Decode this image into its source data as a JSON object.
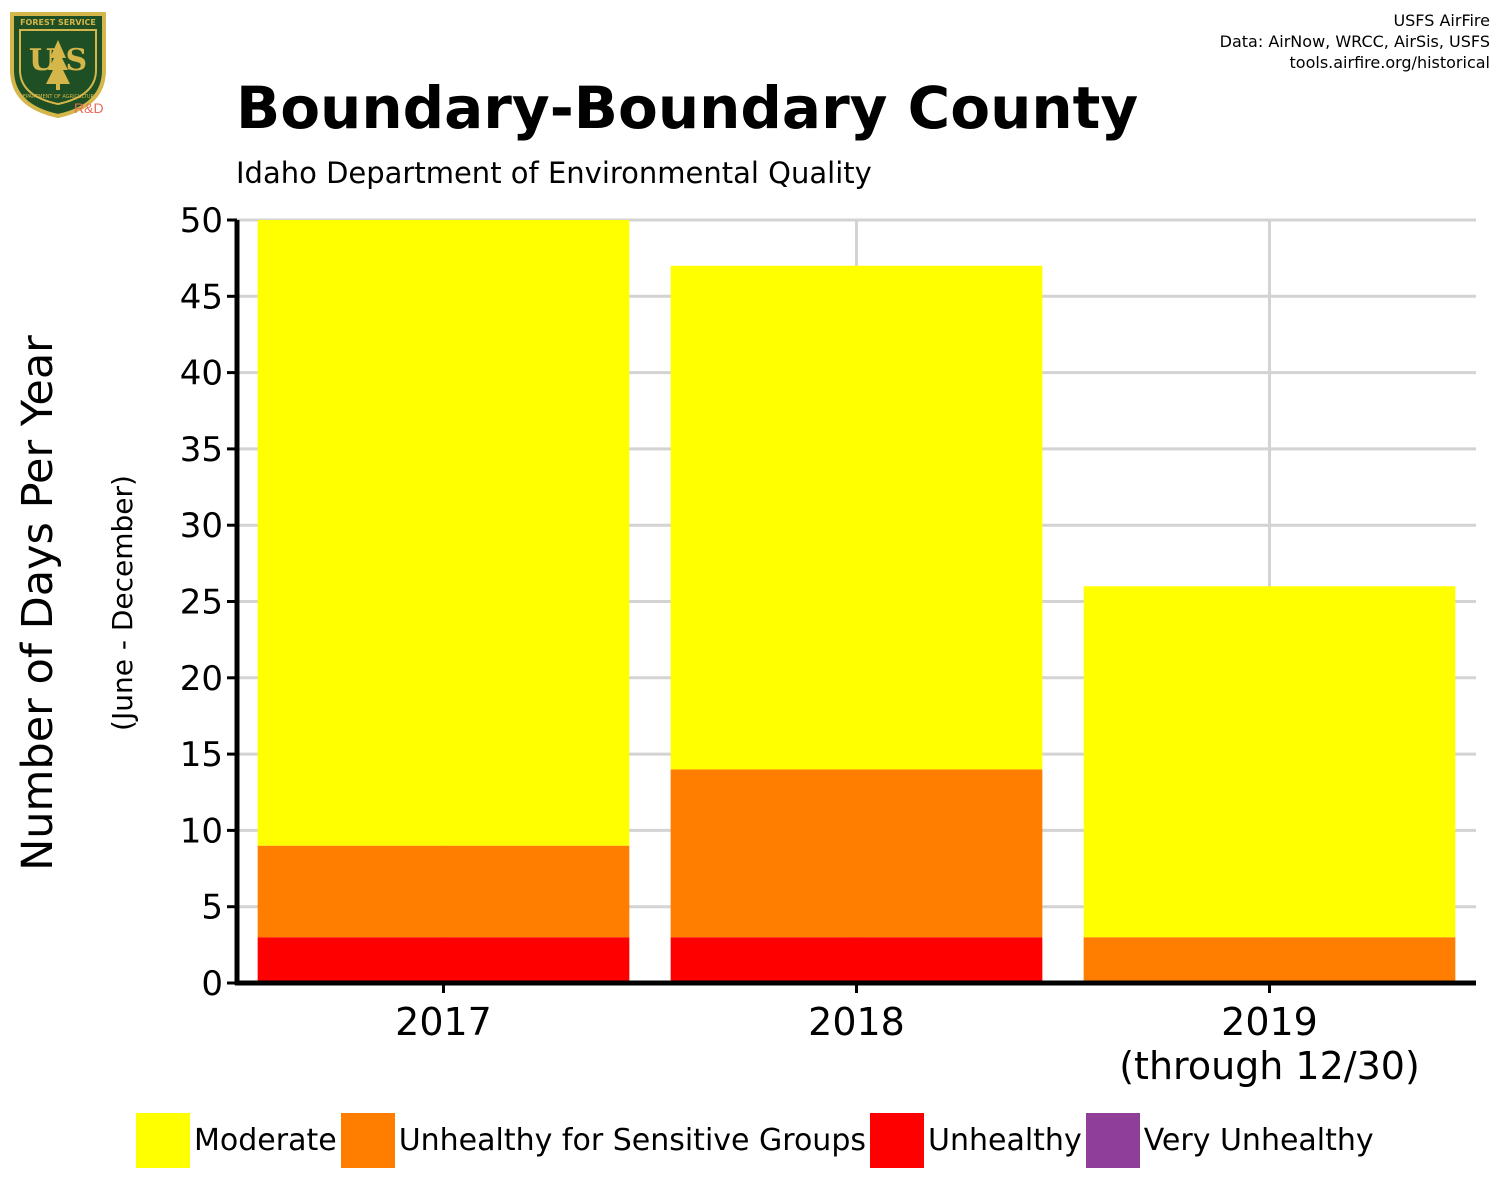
{
  "header": {
    "logo": {
      "icon": "usfs-shield-logo",
      "top_text": "FOREST SERVICE",
      "letters": "U S",
      "bottom_text": "DEPARTMENT OF AGRICULTURE",
      "badge": "R&D",
      "colors": {
        "shield": "#1f4f24",
        "gold": "#d4b64a",
        "badge": "#e86a5a"
      }
    },
    "credits": [
      "USFS AirFire",
      "Data: AirNow, WRCC, AirSis, USFS",
      "tools.airfire.org/historical"
    ]
  },
  "chart_data": {
    "type": "bar",
    "stacked": true,
    "title": "Boundary-Boundary County",
    "subtitle": "Idaho Department of Environmental Quality",
    "ylabel": "Number of Days Per Year",
    "ylabel_sub": "(June - December)",
    "xlabel": "",
    "categories": [
      "2017",
      "2018",
      "2019"
    ],
    "category_sublabels": [
      "",
      "",
      "(through 12/30)"
    ],
    "ylim": [
      0,
      50
    ],
    "yticks": [
      0,
      5,
      10,
      15,
      20,
      25,
      30,
      35,
      40,
      45,
      50
    ],
    "grid": true,
    "legend_position": "bottom",
    "series": [
      {
        "name": "Unhealthy",
        "color": "#ff0000",
        "values": [
          3,
          3,
          0
        ]
      },
      {
        "name": "Unhealthy for Sensitive Groups",
        "color": "#ff7e00",
        "values": [
          6,
          11,
          3
        ]
      },
      {
        "name": "Moderate",
        "color": "#ffff00",
        "values": [
          41,
          33,
          23
        ]
      }
    ],
    "legend": [
      {
        "name": "Moderate",
        "color": "#ffff00"
      },
      {
        "name": "Unhealthy for Sensitive Groups",
        "color": "#ff7e00"
      },
      {
        "name": "Unhealthy",
        "color": "#ff0000"
      },
      {
        "name": "Very Unhealthy",
        "color": "#8f3f97"
      }
    ]
  }
}
